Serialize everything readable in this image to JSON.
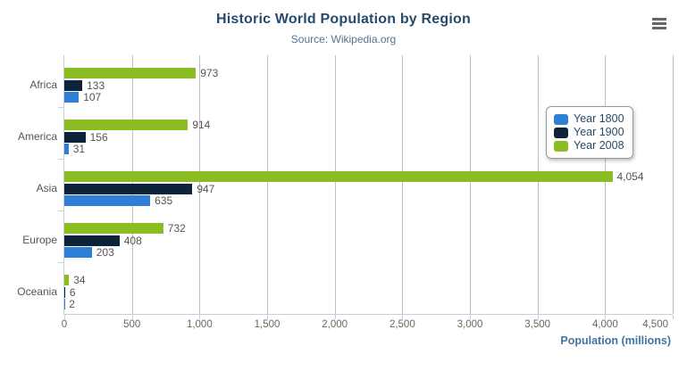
{
  "colors": {
    "title": "#274b6d",
    "subtitle": "#55738f",
    "label": "#555555",
    "axislabel": "#666666",
    "axistitle": "#4572A7",
    "grid": "#c0c0c0",
    "axisline": "#C0D0E0"
  },
  "header": {
    "export_menu_icon": "hamburger-menu-icon"
  },
  "chart_data": {
    "type": "bar",
    "title": "Historic World Population by Region",
    "subtitle": "Source: Wikipedia.org",
    "xlabel": "Population (millions)",
    "ylabel": "",
    "grid": "vertical-only",
    "legend_position": "right",
    "categories": [
      "Africa",
      "America",
      "Asia",
      "Europe",
      "Oceania"
    ],
    "series": [
      {
        "name": "Year 1800",
        "color": "#2f7ed8",
        "values": [
          107,
          31,
          635,
          203,
          2
        ]
      },
      {
        "name": "Year 1900",
        "color": "#0d233a",
        "values": [
          133,
          156,
          947,
          408,
          6
        ]
      },
      {
        "name": "Year 2008",
        "color": "#8bbc21",
        "values": [
          973,
          914,
          4054,
          732,
          34
        ]
      }
    ],
    "series_display_order_top_to_bottom": [
      "Year 2008",
      "Year 1900",
      "Year 1800"
    ],
    "axis": {
      "min": 0,
      "max": 4500,
      "tick_interval": 500,
      "tick_labels": [
        "0",
        "500",
        "1,000",
        "1,500",
        "2,000",
        "2,500",
        "3,000",
        "3,500",
        "4,000",
        "4,500"
      ]
    }
  }
}
